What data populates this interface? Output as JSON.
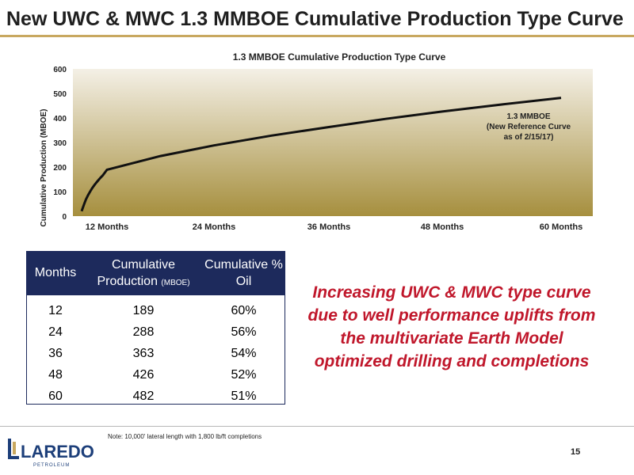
{
  "slide": {
    "title": "New UWC & MWC 1.3 MMBOE Cumulative Production Type Curve",
    "callout": "Increasing UWC & MWC type curve due to well performance uplifts from the multivariate Earth Model optimized drilling and completions",
    "note": "Note: 10,000' lateral length with 1,800 lb/ft completions",
    "page_number": "15",
    "logo": {
      "name": "LAREDO",
      "sub": "PETROLEUM"
    }
  },
  "chart_data": {
    "type": "line",
    "title": "1.3 MMBOE Cumulative Production Type Curve",
    "ylabel": "Cumulative Production (MBOE)",
    "xlabel": "",
    "x_tick_labels": [
      "12 Months",
      "24 Months",
      "36 Months",
      "48 Months",
      "60 Months"
    ],
    "y_tick_labels": [
      "0",
      "100",
      "200",
      "300",
      "400",
      "500",
      "600"
    ],
    "ylim": [
      0,
      600
    ],
    "annotation": [
      "1.3 MMBOE",
      "(New Reference Curve",
      "as of 2/15/17)"
    ],
    "grid": false,
    "background": "gradient (beige to olive)",
    "series": [
      {
        "values": [
          [
            0,
            20
          ],
          [
            1,
            45
          ],
          [
            2,
            67
          ],
          [
            3,
            85
          ],
          [
            4,
            100
          ],
          [
            5,
            114
          ],
          [
            6,
            126
          ],
          [
            7,
            137
          ],
          [
            8,
            147
          ],
          [
            9,
            157
          ],
          [
            10,
            166
          ],
          [
            12,
            189
          ],
          [
            18,
            245
          ],
          [
            24,
            288
          ],
          [
            30,
            328
          ],
          [
            36,
            363
          ],
          [
            42,
            396
          ],
          [
            48,
            426
          ],
          [
            54,
            455
          ],
          [
            60,
            482
          ]
        ]
      }
    ],
    "colors": {
      "line": "#111111",
      "plot_top": "#f4f0e6",
      "plot_bottom": "#a68f3e"
    }
  },
  "table": {
    "headers": [
      "Months",
      "Cumulative Production",
      "Cumulative % Oil"
    ],
    "header_unit": "(MBOE)",
    "rows": [
      [
        "12",
        "189",
        "60%"
      ],
      [
        "24",
        "288",
        "56%"
      ],
      [
        "36",
        "363",
        "54%"
      ],
      [
        "48",
        "426",
        "52%"
      ],
      [
        "60",
        "482",
        "51%"
      ]
    ]
  }
}
